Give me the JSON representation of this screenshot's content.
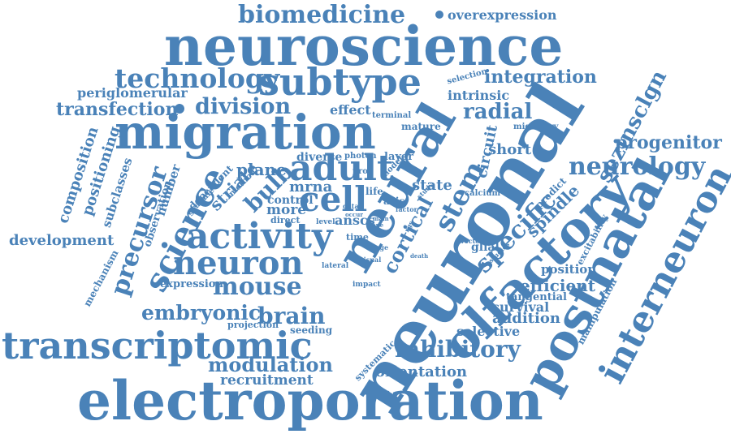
{
  "accent_color": "#4a82b8",
  "background_color": "#ffffff",
  "words": [
    "biomedicine",
    "overexpression",
    "neuroscience",
    "technology",
    "subtype",
    "integration",
    "periglomerular",
    "selection",
    "intrinsic",
    "transfection",
    "division",
    "effect",
    "terminal",
    "radial",
    "migration",
    "mature",
    "migratory",
    "sezinsclgn",
    "circuit",
    "progenitor",
    "composition",
    "positioning",
    "subclasses",
    "adult",
    "short",
    "neurology",
    "photon",
    "layer",
    "precursor",
    "observation",
    "number",
    "dependent",
    "striate",
    "plane",
    "diverse",
    "model",
    "bulb",
    "method",
    "proc",
    "predict",
    "granule",
    "science",
    "cell",
    "mrna",
    "life",
    "state",
    "stem",
    "calcium",
    "spindle",
    "control",
    "axis",
    "more",
    "direct",
    "factor",
    "data",
    "main",
    "done",
    "occur",
    "level",
    "anscs",
    "rgs",
    "study",
    "development",
    "activity",
    "time",
    "cortical",
    "vector",
    "glial",
    "studies",
    "excitability",
    "specific",
    "stage",
    "neuron",
    "mechanism",
    "death",
    "lateral",
    "visual",
    "position",
    "expression",
    "impact",
    "mouse",
    "efficient",
    "neuronal",
    "tangential",
    "neural",
    "postnatal",
    "olfactory",
    "interneuron",
    "survival",
    "embryonic",
    "brain",
    "addition",
    "projection",
    "selective",
    "manipulation",
    "seeding",
    "transcriptomic",
    "systematic",
    "inhibitory",
    "modulation",
    "orientation",
    "recruitment",
    "electroporation"
  ]
}
